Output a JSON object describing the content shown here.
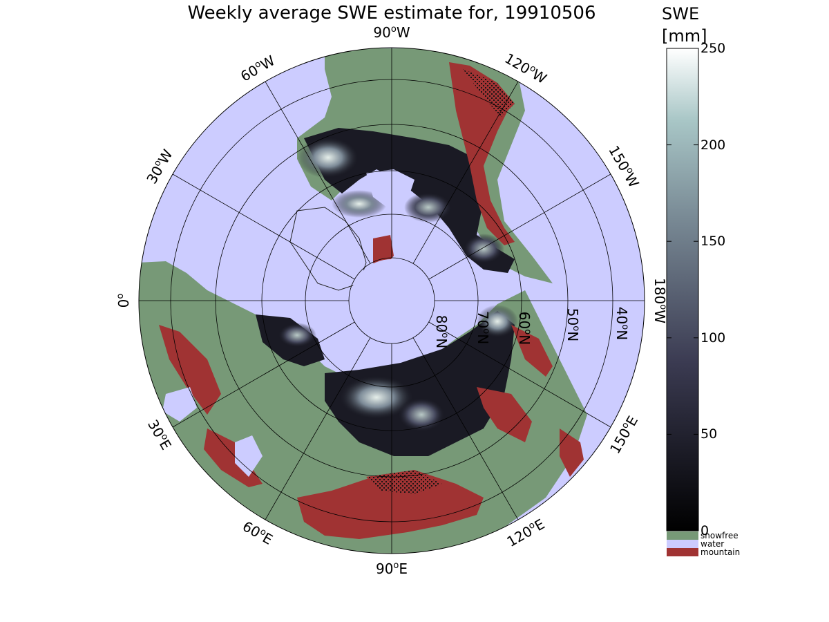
{
  "figure": {
    "title": "Weekly average SWE estimate for, 19910506"
  },
  "map": {
    "projection": "north polar stereographic",
    "longitude_labels": [
      "90°W",
      "60°W",
      "120°W",
      "30°W",
      "150°W",
      "0°",
      "180°W",
      "30°E",
      "150°E",
      "60°E",
      "120°E",
      "90°E"
    ],
    "latitude_labels": [
      "80°N",
      "70°N",
      "60°N",
      "50°N",
      "40°N"
    ],
    "lon_label_parts": [
      {
        "num": "90",
        "deg": "o",
        "hem": "W"
      },
      {
        "num": "60",
        "deg": "o",
        "hem": "W"
      },
      {
        "num": "120",
        "deg": "o",
        "hem": "W"
      },
      {
        "num": "30",
        "deg": "o",
        "hem": "W"
      },
      {
        "num": "150",
        "deg": "o",
        "hem": "W"
      },
      {
        "num": "0",
        "deg": "o",
        "hem": ""
      },
      {
        "num": "180",
        "deg": "o",
        "hem": "W"
      },
      {
        "num": "30",
        "deg": "o",
        "hem": "E"
      },
      {
        "num": "150",
        "deg": "o",
        "hem": "E"
      },
      {
        "num": "60",
        "deg": "o",
        "hem": "E"
      },
      {
        "num": "120",
        "deg": "o",
        "hem": "E"
      },
      {
        "num": "90",
        "deg": "o",
        "hem": "E"
      }
    ],
    "lat_label_parts": [
      {
        "num": "80",
        "deg": "o",
        "hem": "N"
      },
      {
        "num": "70",
        "deg": "o",
        "hem": "N"
      },
      {
        "num": "60",
        "deg": "o",
        "hem": "N"
      },
      {
        "num": "50",
        "deg": "o",
        "hem": "N"
      },
      {
        "num": "40",
        "deg": "o",
        "hem": "N"
      }
    ],
    "colors": {
      "water": "#ccccff",
      "snowfree": "#779977",
      "mountain": "#a03333",
      "snow_low": "#0a0a10",
      "snow_mid": "#55556e",
      "snow_high": "#dde8e4",
      "graticule": "#000000"
    }
  },
  "colorbar": {
    "label_line1": "SWE",
    "label_line2": "[mm]",
    "min": 0,
    "max": 250,
    "ticks": [
      "0",
      "50",
      "100",
      "150",
      "200",
      "250"
    ],
    "colormap": "bone",
    "legend": [
      {
        "label": "snowfree",
        "color": "#779977"
      },
      {
        "label": "water",
        "color": "#ccccff"
      },
      {
        "label": "mountain",
        "color": "#a03333"
      }
    ]
  }
}
